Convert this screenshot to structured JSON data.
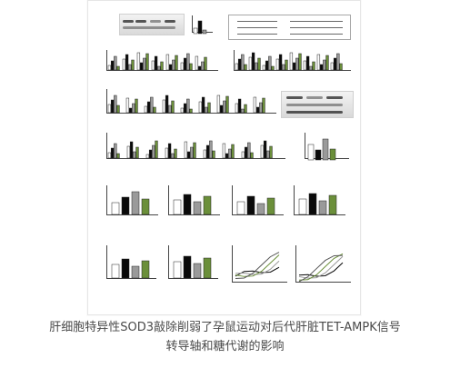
{
  "figure": {
    "caption": "肝细胞特异性SOD3敲除削弱了孕鼠运动对后代肝脏TET-AMPK信号转导轴和糖代谢的影响",
    "colors": {
      "black": "#0a0a0a",
      "white": "#ffffff",
      "green": "#6b8f3a",
      "gray": "#9a9a9a"
    },
    "panels": [
      {
        "letter": "",
        "type": "western-blot-bars"
      },
      {
        "letter": "",
        "type": "schema"
      },
      {
        "letter": "",
        "type": "bar-chart"
      },
      {
        "letter": "",
        "type": "bar-chart"
      },
      {
        "letter": "",
        "type": "bar-chart"
      },
      {
        "letter": "",
        "type": "western-blot"
      },
      {
        "letter": "",
        "type": "bar-chart"
      },
      {
        "letter": "",
        "type": "bar-chart"
      },
      {
        "letter": "",
        "type": "bar-chart"
      },
      {
        "letter": "",
        "type": "bar-chart"
      },
      {
        "letter": "",
        "type": "bar-chart"
      },
      {
        "letter": "",
        "type": "bar-chart"
      },
      {
        "letter": "",
        "type": "bar-chart"
      },
      {
        "letter": "",
        "type": "bar-chart"
      },
      {
        "letter": "",
        "type": "bar-chart"
      },
      {
        "letter": "",
        "type": "bar-chart"
      },
      {
        "letter": "",
        "type": "line-chart"
      },
      {
        "letter": "",
        "type": "line-chart"
      }
    ]
  }
}
